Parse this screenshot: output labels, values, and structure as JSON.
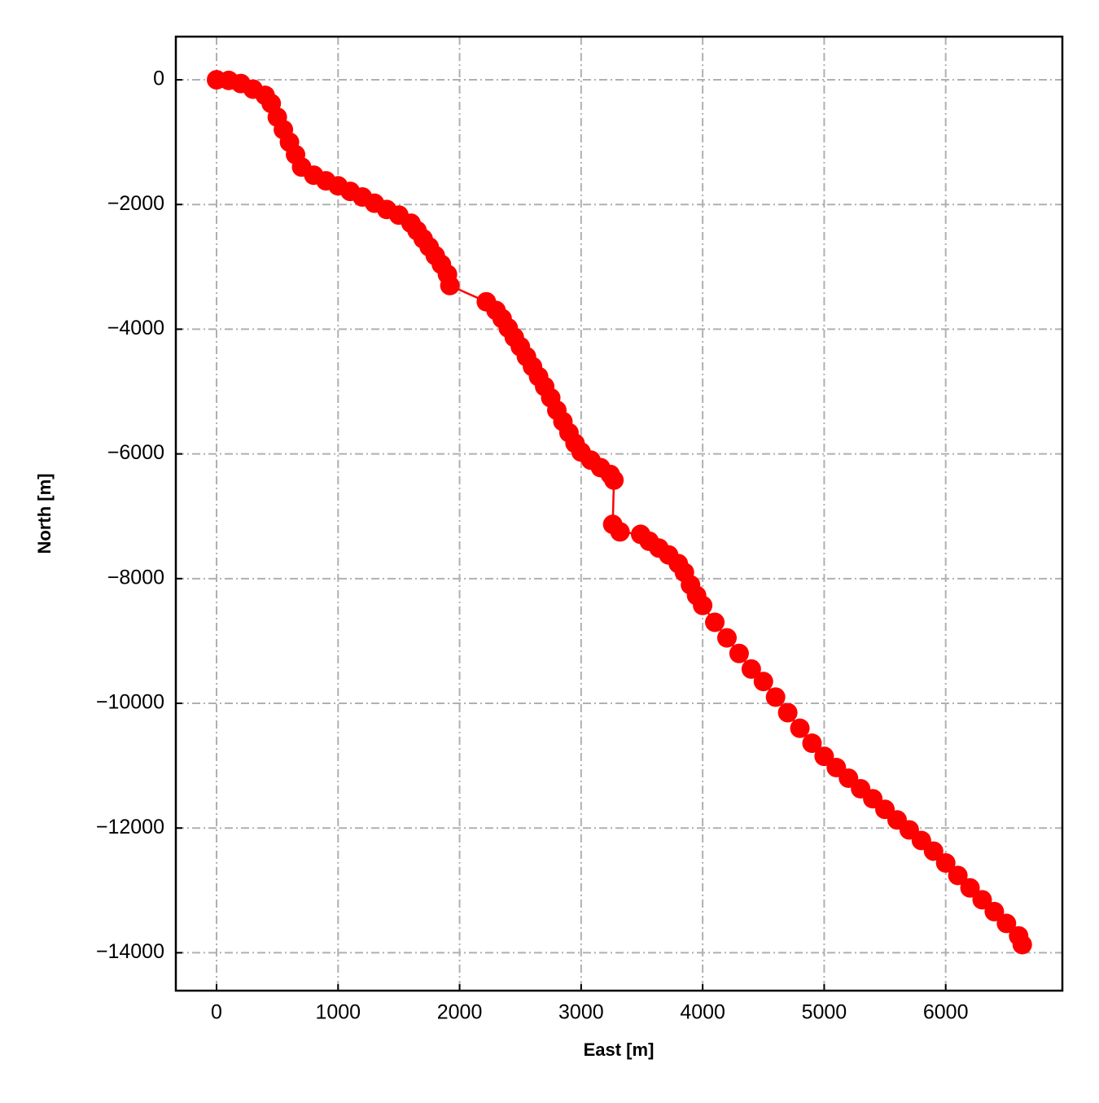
{
  "chart_data": {
    "type": "line",
    "xlabel": "East [m]",
    "ylabel": "North [m]",
    "x": [
      0,
      100,
      200,
      300,
      400,
      450,
      500,
      550,
      600,
      650,
      700,
      800,
      900,
      1000,
      1100,
      1200,
      1300,
      1400,
      1500,
      1600,
      1650,
      1700,
      1750,
      1800,
      1850,
      1900,
      1920,
      2220,
      2300,
      2350,
      2400,
      2450,
      2500,
      2550,
      2600,
      2650,
      2700,
      2750,
      2800,
      2850,
      2900,
      2950,
      3000,
      3080,
      3160,
      3240,
      3270,
      3260,
      3320,
      3490,
      3560,
      3640,
      3720,
      3800,
      3850,
      3900,
      3950,
      4000,
      4100,
      4200,
      4300,
      4400,
      4500,
      4600,
      4700,
      4800,
      4900,
      5000,
      5100,
      5200,
      5300,
      5400,
      5500,
      5600,
      5700,
      5800,
      5900,
      6000,
      6100,
      6200,
      6300,
      6400,
      6500,
      6600,
      6630
    ],
    "values": [
      0,
      -10,
      -60,
      -150,
      -250,
      -380,
      -600,
      -800,
      -1000,
      -1200,
      -1400,
      -1530,
      -1620,
      -1700,
      -1790,
      -1880,
      -1980,
      -2080,
      -2170,
      -2300,
      -2420,
      -2550,
      -2680,
      -2820,
      -2960,
      -3120,
      -3300,
      -3560,
      -3700,
      -3830,
      -3980,
      -4130,
      -4280,
      -4440,
      -4600,
      -4760,
      -4920,
      -5100,
      -5300,
      -5480,
      -5660,
      -5830,
      -5970,
      -6100,
      -6220,
      -6330,
      -6420,
      -7130,
      -7250,
      -7290,
      -7400,
      -7510,
      -7620,
      -7760,
      -7900,
      -8100,
      -8270,
      -8430,
      -8700,
      -8950,
      -9200,
      -9450,
      -9650,
      -9900,
      -10150,
      -10400,
      -10640,
      -10850,
      -11030,
      -11200,
      -11370,
      -11530,
      -11700,
      -11870,
      -12030,
      -12200,
      -12370,
      -12560,
      -12760,
      -12960,
      -13150,
      -13340,
      -13530,
      -13730,
      -13870
    ],
    "color": "#ff0000",
    "markers": true,
    "xlim": [
      -335,
      6960
    ],
    "ylim": [
      -14608,
      692
    ],
    "xticks": [
      0,
      1000,
      2000,
      3000,
      4000,
      5000,
      6000
    ],
    "yticks": [
      0,
      {
        "value": -2000,
        "label": "−2000"
      },
      {
        "value": -4000,
        "label": "−4000"
      },
      {
        "value": -6000,
        "label": "−6000"
      },
      {
        "value": -8000,
        "label": "−8000"
      },
      {
        "value": -10000,
        "label": "−10000"
      },
      {
        "value": -12000,
        "label": "−12000"
      },
      {
        "value": -14000,
        "label": "−14000"
      }
    ],
    "grid": true
  }
}
